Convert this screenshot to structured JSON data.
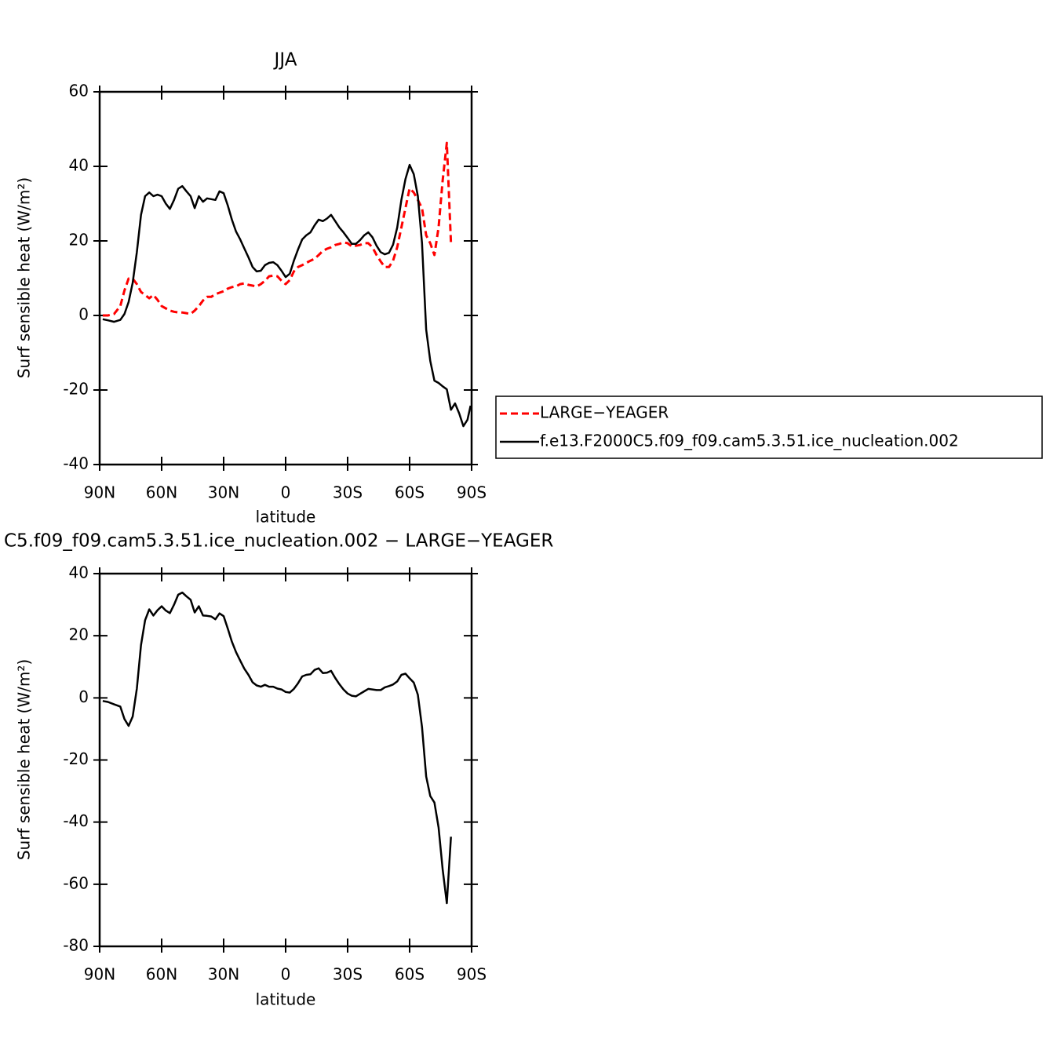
{
  "chart_data": [
    {
      "type": "line",
      "title": "JJA",
      "xlabel": "latitude",
      "ylabel": "Surf sensible heat (W/m²)",
      "x": [
        88.5,
        86,
        83,
        80,
        78,
        76,
        74,
        72,
        70,
        68,
        66,
        64,
        62,
        60,
        58,
        56,
        54,
        52,
        50,
        48,
        46,
        44,
        42,
        40,
        38,
        36,
        34,
        32,
        30,
        28,
        26,
        24,
        22,
        20,
        18,
        16,
        14,
        12,
        10,
        8,
        6,
        4,
        2,
        0,
        -2,
        -4,
        -6,
        -8,
        -10,
        -12,
        -14,
        -16,
        -18,
        -20,
        -22,
        -24,
        -26,
        -28,
        -30,
        -32,
        -34,
        -36,
        -38,
        -40,
        -42,
        -44,
        -46,
        -48,
        -50,
        -52,
        -54,
        -56,
        -58,
        -60,
        -62,
        -64,
        -66,
        -68,
        -70,
        -72,
        -74,
        -76,
        -78,
        -80,
        -82,
        -84,
        -86,
        -88,
        -89.5
      ],
      "series": [
        {
          "name": "LARGE−YEAGER",
          "color": "#ff0000",
          "dashed": true,
          "values": [
            0,
            0,
            0.4,
            2.5,
            6.7,
            9.9,
            9.9,
            8.4,
            6.3,
            5.5,
            4.6,
            5.5,
            4.2,
            2.5,
            1.9,
            1.3,
            1,
            0.8,
            0.8,
            0.6,
            0.4,
            1.3,
            2.5,
            4,
            5,
            5,
            5.7,
            6.1,
            6.5,
            7.2,
            7.6,
            7.8,
            8.4,
            8.6,
            8.2,
            8,
            7.8,
            8.4,
            9.3,
            10.5,
            10.7,
            10.5,
            9.3,
            8.4,
            9.5,
            11.8,
            13,
            13.5,
            14.1,
            14.7,
            15.2,
            16.2,
            17.3,
            17.9,
            18.3,
            18.9,
            19.2,
            19.6,
            19.4,
            18.5,
            18.7,
            18.9,
            19.4,
            19.4,
            18.3,
            16.2,
            14.5,
            13,
            13,
            14.7,
            18.3,
            23.6,
            28.8,
            34.1,
            33,
            31,
            28.8,
            21.5,
            19.4,
            16.2,
            23.6,
            36.2,
            46.3,
            19.4,
            null,
            null,
            null,
            null,
            null
          ]
        },
        {
          "name": "f.e13.F2000C5.f09_f09.cam5.3.51.ice_nucleation.002",
          "color": "#000000",
          "dashed": false,
          "values": [
            -1,
            -1.3,
            -1.7,
            -1.2,
            0.4,
            3.6,
            8.8,
            17,
            27,
            32,
            33,
            32,
            32.4,
            32,
            30,
            28.6,
            31,
            34,
            34.7,
            33.3,
            32,
            28.8,
            32,
            30.5,
            31.4,
            31.2,
            31,
            33.3,
            32.8,
            29.5,
            25.7,
            22.5,
            20.4,
            18,
            15.6,
            13,
            11.8,
            12,
            13.5,
            14.1,
            14.3,
            13.5,
            12,
            10.3,
            11.2,
            14.7,
            17.7,
            20.4,
            21.5,
            22.3,
            24.2,
            25.7,
            25.3,
            26,
            27,
            25.3,
            23.6,
            22.3,
            20.8,
            19.2,
            19.2,
            20.2,
            21.5,
            22.3,
            21,
            18.7,
            17,
            16.4,
            16.8,
            19,
            23.6,
            31,
            36.6,
            40.4,
            37.9,
            32,
            19.4,
            -3.8,
            -12.2,
            -17.5,
            -18.1,
            -19,
            -19.8,
            -25.3,
            -23.6,
            -26.3,
            -29.7,
            -28,
            -24.2
          ]
        }
      ],
      "xlim": [
        90,
        -90
      ],
      "xticks": [
        {
          "value": 90,
          "label": "90N"
        },
        {
          "value": 60,
          "label": "60N"
        },
        {
          "value": 30,
          "label": "30N"
        },
        0,
        {
          "value": -30,
          "label": "30S"
        },
        {
          "value": -60,
          "label": "60S"
        },
        {
          "value": -90,
          "label": "90S"
        }
      ],
      "ylim": [
        -40,
        60
      ],
      "yticks": [
        -40,
        -20,
        0,
        20,
        40,
        60
      ],
      "legend": "right"
    },
    {
      "type": "line",
      "title": "C5.f09_f09.cam5.3.51.ice_nucleation.002 − LARGE−YEAGER",
      "xlabel": "latitude",
      "ylabel": "Surf sensible heat (W/m²)",
      "x": [
        88.5,
        86,
        83,
        80,
        78,
        76,
        74,
        72,
        70,
        68,
        66,
        64,
        62,
        60,
        58,
        56,
        54,
        52,
        50,
        48,
        46,
        44,
        42,
        40,
        38,
        36,
        34,
        32,
        30,
        28,
        26,
        24,
        22,
        20,
        18,
        16,
        14,
        12,
        10,
        8,
        6,
        4,
        2,
        0,
        -2,
        -4,
        -6,
        -8,
        -10,
        -12,
        -14,
        -16,
        -18,
        -20,
        -22,
        -24,
        -26,
        -28,
        -30,
        -32,
        -34,
        -36,
        -38,
        -40,
        -42,
        -44,
        -46,
        -48,
        -50,
        -52,
        -54,
        -56,
        -58,
        -60,
        -62,
        -64,
        -66,
        -68,
        -70,
        -72,
        -74,
        -76,
        -78,
        -80,
        -82,
        -84,
        -86,
        -88,
        -89.5
      ],
      "color": "#000000",
      "values": [
        -1,
        -1.3,
        -2.1,
        -2.8,
        -6.8,
        -9,
        -6,
        3,
        17,
        25,
        28.5,
        26.5,
        28.2,
        29.5,
        28.1,
        27.3,
        30,
        33.2,
        33.9,
        32.7,
        31.6,
        27.5,
        29.5,
        26.5,
        26.4,
        26.2,
        25.3,
        27.2,
        26.3,
        22.3,
        18.1,
        14.7,
        12,
        9.4,
        7.4,
        5,
        4,
        3.6,
        4.2,
        3.6,
        3.6,
        3,
        2.7,
        1.9,
        1.7,
        2.9,
        4.7,
        6.9,
        7.4,
        7.6,
        9,
        9.5,
        8,
        8.1,
        8.7,
        6.4,
        4.4,
        2.7,
        1.4,
        0.7,
        0.5,
        1.3,
        2.1,
        2.9,
        2.7,
        2.5,
        2.5,
        3.4,
        3.8,
        4.3,
        5.3,
        7.4,
        7.8,
        6.3,
        4.9,
        1,
        -9.4,
        -25.3,
        -31.6,
        -33.7,
        -41.7,
        -55.2,
        -66.1,
        -44.7,
        null,
        null,
        null,
        null,
        null
      ],
      "xlim": [
        90,
        -90
      ],
      "xticks": [
        {
          "value": 90,
          "label": "90N"
        },
        {
          "value": 60,
          "label": "60N"
        },
        {
          "value": 30,
          "label": "30N"
        },
        0,
        {
          "value": -30,
          "label": "30S"
        },
        {
          "value": -60,
          "label": "60S"
        },
        {
          "value": -90,
          "label": "90S"
        }
      ],
      "ylim": [
        -80,
        40
      ],
      "yticks": [
        -80,
        -60,
        -40,
        -20,
        0,
        20,
        40
      ]
    }
  ]
}
